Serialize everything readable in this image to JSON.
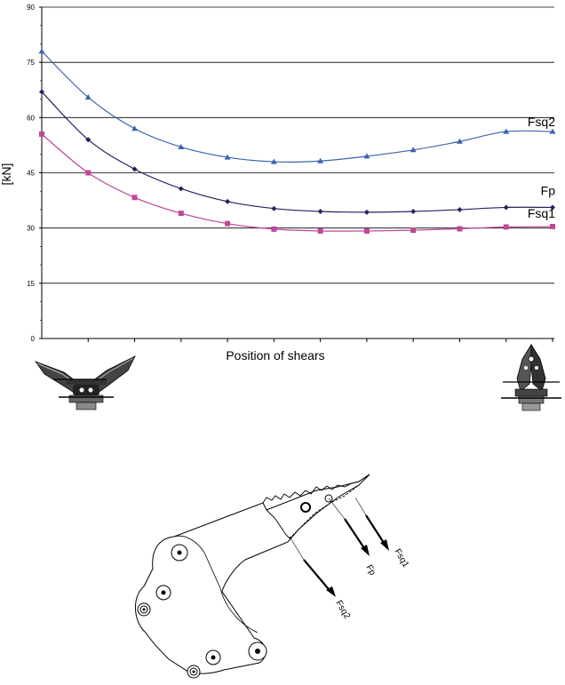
{
  "chart_data": {
    "type": "line",
    "title": "",
    "xlabel": "Position of shears",
    "ylabel": "[kN]",
    "ylim": [
      0,
      90
    ],
    "yticks": [
      0,
      15,
      30,
      45,
      60,
      75,
      90
    ],
    "x": [
      0,
      1,
      2,
      3,
      4,
      5,
      6,
      7,
      8,
      9,
      10,
      11
    ],
    "grid": "horizontal",
    "legend": "inline labels at right end",
    "series": [
      {
        "name": "Fsq2",
        "color": "#3d63ad",
        "marker": "triangle",
        "values": [
          78.0,
          65.5,
          57.0,
          52.0,
          49.2,
          48.0,
          48.2,
          49.5,
          51.2,
          53.5,
          56.2,
          56.2
        ]
      },
      {
        "name": "Fp",
        "color": "#23235f",
        "marker": "diamond",
        "values": [
          67.0,
          54.0,
          46.0,
          40.7,
          37.2,
          35.3,
          34.5,
          34.3,
          34.5,
          35.0,
          35.6,
          35.6
        ]
      },
      {
        "name": "Fsq1",
        "color": "#c0479a",
        "marker": "square",
        "values": [
          55.5,
          45.0,
          38.3,
          34.0,
          31.2,
          29.7,
          29.2,
          29.2,
          29.4,
          29.8,
          30.3,
          30.4
        ]
      }
    ]
  },
  "diagram": {
    "arrow_labels": [
      "Fp",
      "Fsq1",
      "Fsq2"
    ]
  }
}
